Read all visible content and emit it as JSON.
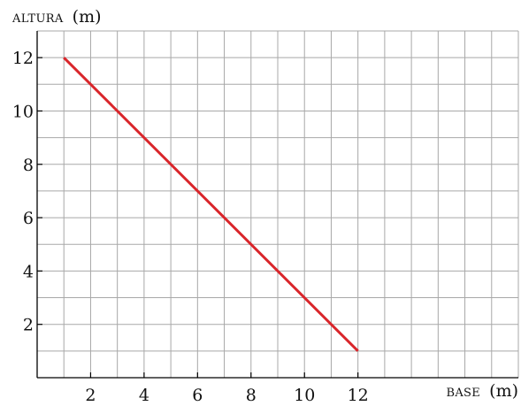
{
  "chart_data": {
    "type": "line",
    "xlabel": {
      "main": "BASE",
      "unit": "(m)"
    },
    "ylabel": {
      "main": "ALTURA",
      "unit": "(m)"
    },
    "xlim": [
      0,
      18
    ],
    "ylim": [
      0,
      13
    ],
    "x_ticks": [
      2,
      4,
      6,
      8,
      10,
      12
    ],
    "y_ticks": [
      2,
      4,
      6,
      8,
      10,
      12
    ],
    "grid": true,
    "series": [
      {
        "color": "#d9262b",
        "x": [
          1,
          12
        ],
        "y": [
          12,
          1
        ]
      }
    ]
  }
}
